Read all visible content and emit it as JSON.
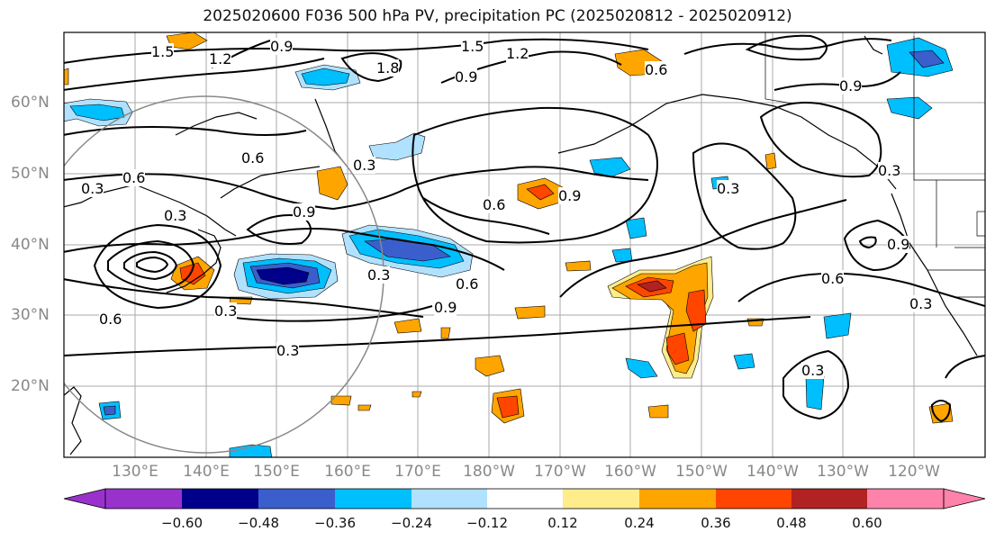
{
  "title": "2025020600 F036 500 hPa PV, precipitation PC (2025020812 - 2025020912)",
  "lat_labels": [
    "60°N",
    "50°N",
    "40°N",
    "30°N",
    "20°N"
  ],
  "lon_labels": [
    "130°E",
    "140°E",
    "150°E",
    "160°E",
    "170°E",
    "180°W",
    "170°W",
    "160°W",
    "150°W",
    "140°W",
    "130°W",
    "120°W"
  ],
  "colorbar": {
    "ticks": [
      "−0.60",
      "−0.48",
      "−0.36",
      "−0.24",
      "−0.12",
      "0.12",
      "0.24",
      "0.36",
      "0.48",
      "0.60"
    ],
    "colors": [
      "#9932CC",
      "#00008B",
      "#3A5FCD",
      "#00BFFF",
      "#B0E2FF",
      "#FFFFFF",
      "#FFEC8B",
      "#FFA500",
      "#FF4500",
      "#B22222",
      "#FF82AB"
    ]
  },
  "contour_labels": [
    "1.5",
    "0.9",
    "1.5",
    "1.2",
    "1.8",
    "1.2",
    "0.9",
    "0.6",
    "0.6",
    "0.3",
    "0.6",
    "0.3",
    "0.9",
    "0.6",
    "0.9",
    "0.3",
    "0.3",
    "0.6",
    "0.9",
    "0.3",
    "0.3",
    "0.9",
    "0.6",
    "0.3",
    "0.3",
    "0.6",
    "0.3",
    "0.3",
    "0.9"
  ]
}
